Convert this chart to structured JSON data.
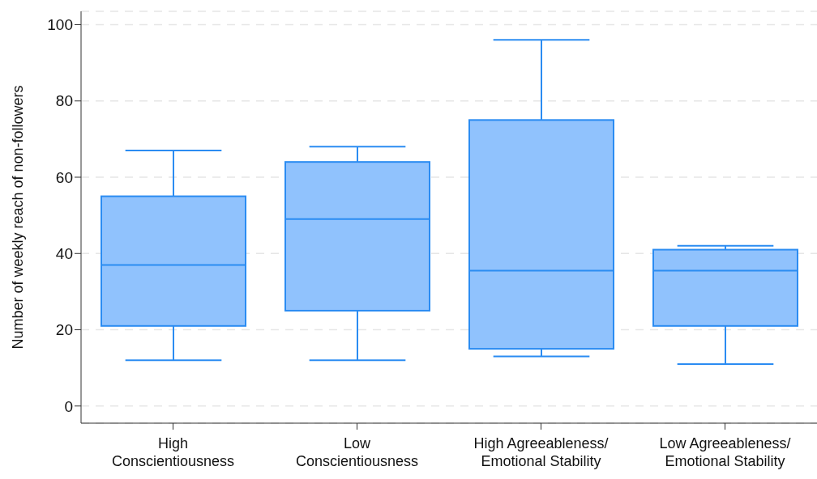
{
  "chart_data": {
    "type": "box",
    "ylabel": "Number of weekly reach of non-followers",
    "categories": [
      "High\nConscientiousness",
      "Low\nConscientiousness",
      "High Agreeableness/\nEmotional Stability",
      "Low Agreeableness/\nEmotional Stability"
    ],
    "boxes": [
      {
        "low": 12,
        "q1": 21,
        "median": 37,
        "q3": 55,
        "high": 67
      },
      {
        "low": 12,
        "q1": 25,
        "median": 49,
        "q3": 64,
        "high": 68
      },
      {
        "low": 13,
        "q1": 15,
        "median": 35.5,
        "q3": 75,
        "high": 96
      },
      {
        "low": 11,
        "q1": 21,
        "median": 35.5,
        "q3": 41,
        "high": 42
      }
    ],
    "color": "#90c2fd",
    "ylim": [
      -4.5,
      103.5
    ],
    "yticks": [
      0,
      20,
      40,
      60,
      80,
      100
    ],
    "grid": "y"
  }
}
